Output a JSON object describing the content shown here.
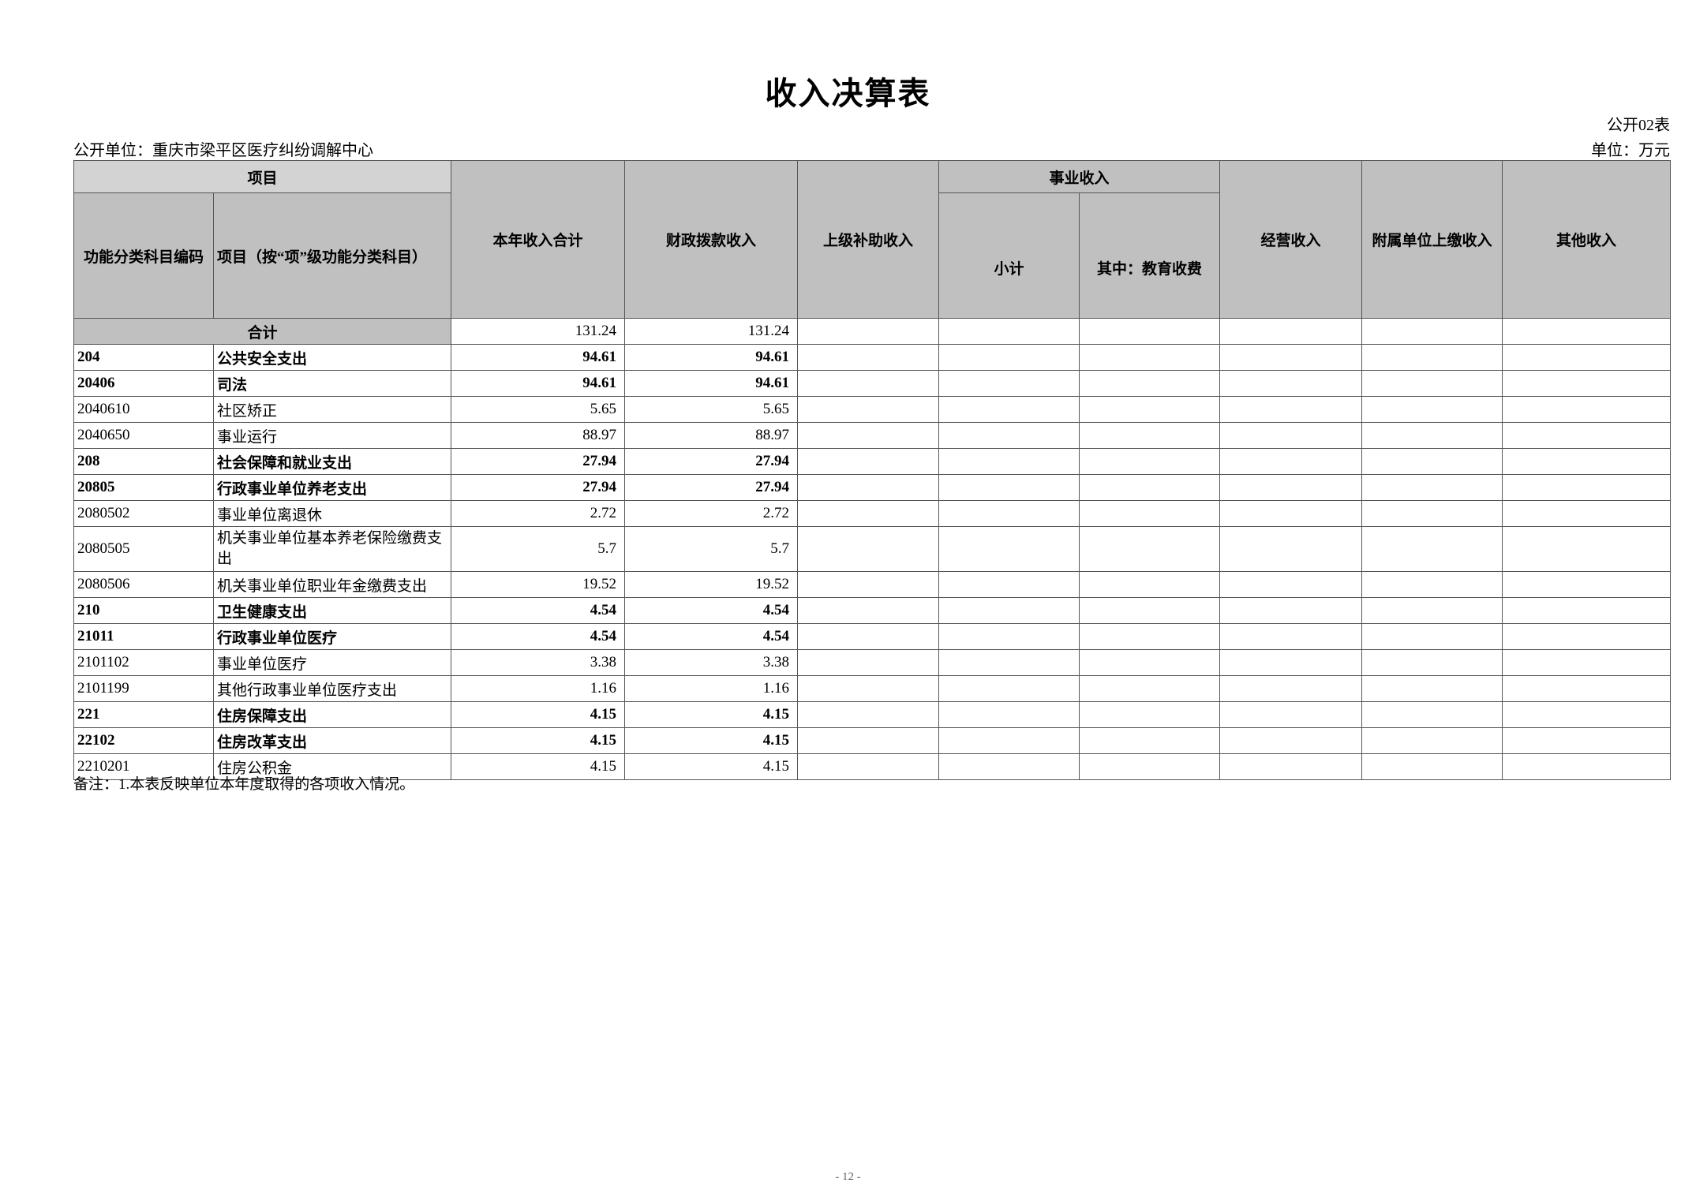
{
  "title": "收入决算表",
  "form_no": "公开02表",
  "org": "公开单位：重庆市梁平区医疗纠纷调解中心",
  "unit": "单位：万元",
  "headers": {
    "item_group": "项目",
    "code": "功能分类科目编码",
    "name": "项目（按“项”级功能分类科目）",
    "total": "本年收入合计",
    "fiscal": "财政拨款收入",
    "superior": "上级补助收入",
    "business_group": "事业收入",
    "business_subtotal": "小计",
    "education_fee": "其中：教育收费",
    "operating": "经营收入",
    "affiliated": "附属单位上缴收入",
    "other": "其他收入"
  },
  "total_row": {
    "label": "合计",
    "total": "131.24",
    "fiscal": "131.24"
  },
  "rows": [
    {
      "code": "204",
      "name": "公共安全支出",
      "total": "94.61",
      "fiscal": "94.61",
      "bold": true
    },
    {
      "code": "20406",
      "name": "司法",
      "total": "94.61",
      "fiscal": "94.61",
      "bold": true
    },
    {
      "code": "2040610",
      "name": "社区矫正",
      "total": "5.65",
      "fiscal": "5.65",
      "bold": false
    },
    {
      "code": "2040650",
      "name": "事业运行",
      "total": "88.97",
      "fiscal": "88.97",
      "bold": false
    },
    {
      "code": "208",
      "name": "社会保障和就业支出",
      "total": "27.94",
      "fiscal": "27.94",
      "bold": true
    },
    {
      "code": "20805",
      "name": "行政事业单位养老支出",
      "total": "27.94",
      "fiscal": "27.94",
      "bold": true
    },
    {
      "code": "2080502",
      "name": "事业单位离退休",
      "total": "2.72",
      "fiscal": "2.72",
      "bold": false
    },
    {
      "code": "2080505",
      "name": "机关事业单位基本养老保险缴费支出",
      "total": "5.7",
      "fiscal": "5.7",
      "bold": false
    },
    {
      "code": "2080506",
      "name": "机关事业单位职业年金缴费支出",
      "total": "19.52",
      "fiscal": "19.52",
      "bold": false
    },
    {
      "code": "210",
      "name": "卫生健康支出",
      "total": "4.54",
      "fiscal": "4.54",
      "bold": true
    },
    {
      "code": "21011",
      "name": "行政事业单位医疗",
      "total": "4.54",
      "fiscal": "4.54",
      "bold": true
    },
    {
      "code": "2101102",
      "name": "事业单位医疗",
      "total": "3.38",
      "fiscal": "3.38",
      "bold": false
    },
    {
      "code": "2101199",
      "name": "其他行政事业单位医疗支出",
      "total": "1.16",
      "fiscal": "1.16",
      "bold": false
    },
    {
      "code": "221",
      "name": "住房保障支出",
      "total": "4.15",
      "fiscal": "4.15",
      "bold": true
    },
    {
      "code": "22102",
      "name": "住房改革支出",
      "total": "4.15",
      "fiscal": "4.15",
      "bold": true
    },
    {
      "code": "2210201",
      "name": "住房公积金",
      "total": "4.15",
      "fiscal": "4.15",
      "bold": false
    }
  ],
  "note": "备注：1.本表反映单位本年度取得的各项收入情况。",
  "page_number": "- 12 -"
}
